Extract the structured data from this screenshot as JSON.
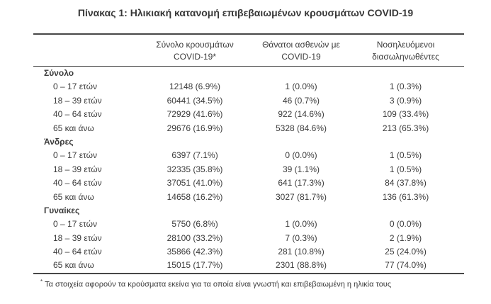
{
  "title": "Πίνακας 1: Ηλικιακή κατανομή επιβεβαιωμένων κρουσμάτων COVID-19",
  "table": {
    "col_headers": [
      {
        "line1": "Σύνολο κρουσμάτων",
        "line2": "COVID-19*"
      },
      {
        "line1": "Θάνατοι ασθενών με",
        "line2": "COVID-19"
      },
      {
        "line1": "Νοσηλευόμενοι",
        "line2": "διασωληνωθέντες"
      }
    ],
    "sections": [
      {
        "label": "Σύνολο",
        "rows": [
          {
            "label": "0 – 17 ετών",
            "cases": "12148 (6.9%)",
            "deaths": "1 (0.0%)",
            "intubated": "1 (0.3%)"
          },
          {
            "label": "18 – 39 ετών",
            "cases": "60441 (34.5%)",
            "deaths": "46 (0.7%)",
            "intubated": "3 (0.9%)"
          },
          {
            "label": "40 – 64 ετών",
            "cases": "72929 (41.6%)",
            "deaths": "922 (14.6%)",
            "intubated": "109 (33.4%)"
          },
          {
            "label": "65 και άνω",
            "cases": "29676 (16.9%)",
            "deaths": "5328 (84.6%)",
            "intubated": "213 (65.3%)"
          }
        ]
      },
      {
        "label": "Άνδρες",
        "rows": [
          {
            "label": "0 – 17 ετών",
            "cases": "6397 (7.1%)",
            "deaths": "0 (0.0%)",
            "intubated": "1 (0.5%)"
          },
          {
            "label": "18 – 39 ετών",
            "cases": "32335 (35.8%)",
            "deaths": "39 (1.1%)",
            "intubated": "1 (0.5%)"
          },
          {
            "label": "40 – 64 ετών",
            "cases": "37051 (41.0%)",
            "deaths": "641 (17.3%)",
            "intubated": "84 (37.8%)"
          },
          {
            "label": "65 και άνω",
            "cases": "14658 (16.2%)",
            "deaths": "3027 (81.7%)",
            "intubated": "136 (61.3%)"
          }
        ]
      },
      {
        "label": "Γυναίκες",
        "rows": [
          {
            "label": "0 – 17 ετών",
            "cases": "5750 (6.8%)",
            "deaths": "1 (0.0%)",
            "intubated": "0 (0.0%)"
          },
          {
            "label": "18 – 39 ετών",
            "cases": "28100 (33.2%)",
            "deaths": "7 (0.3%)",
            "intubated": "2 (1.9%)"
          },
          {
            "label": "40 – 64 ετών",
            "cases": "35866 (42.3%)",
            "deaths": "281 (10.8%)",
            "intubated": "25 (24.0%)"
          },
          {
            "label": "65 και άνω",
            "cases": "15015 (17.7%)",
            "deaths": "2301 (88.8%)",
            "intubated": "77 (74.0%)"
          }
        ]
      }
    ],
    "footnote_marker": "*",
    "footnote": "Τα στοιχεία αφορούν τα κρούσματα εκείνα για τα οποία είναι γνωστή και επιβεβαιωμένη η ηλικία τους"
  },
  "colors": {
    "text": "#3b3b3b",
    "rule": "#474747",
    "background": "#ffffff"
  }
}
